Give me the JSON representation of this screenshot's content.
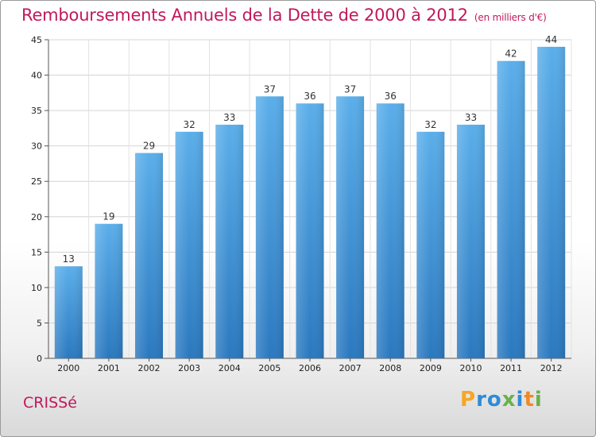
{
  "chart_data": {
    "type": "bar",
    "title": "Remboursements Annuels de la Dette de 2000 à 2012",
    "unit": "(en milliers d'€)",
    "categories": [
      "2000",
      "2001",
      "2002",
      "2003",
      "2004",
      "2005",
      "2006",
      "2007",
      "2008",
      "2009",
      "2010",
      "2011",
      "2012"
    ],
    "values": [
      13,
      19,
      29,
      32,
      33,
      37,
      36,
      37,
      36,
      32,
      33,
      42,
      44
    ],
    "ylim": [
      0,
      45
    ],
    "yticks": [
      0,
      5,
      10,
      15,
      20,
      25,
      30,
      35,
      40,
      45
    ],
    "grid": true,
    "bar_color": "#3d8fd6",
    "title_color": "#c2185b"
  },
  "footer": {
    "place": "CRISSé"
  },
  "logo": {
    "text": "Proxiti",
    "letters": [
      "P",
      "r",
      "o",
      "x",
      "i",
      "t",
      "i"
    ],
    "colors": [
      "#f5a623",
      "#2e8bd8",
      "#2e8bd8",
      "#6ab04c",
      "#2e8bd8",
      "#f08a24",
      "#6ab04c"
    ]
  }
}
